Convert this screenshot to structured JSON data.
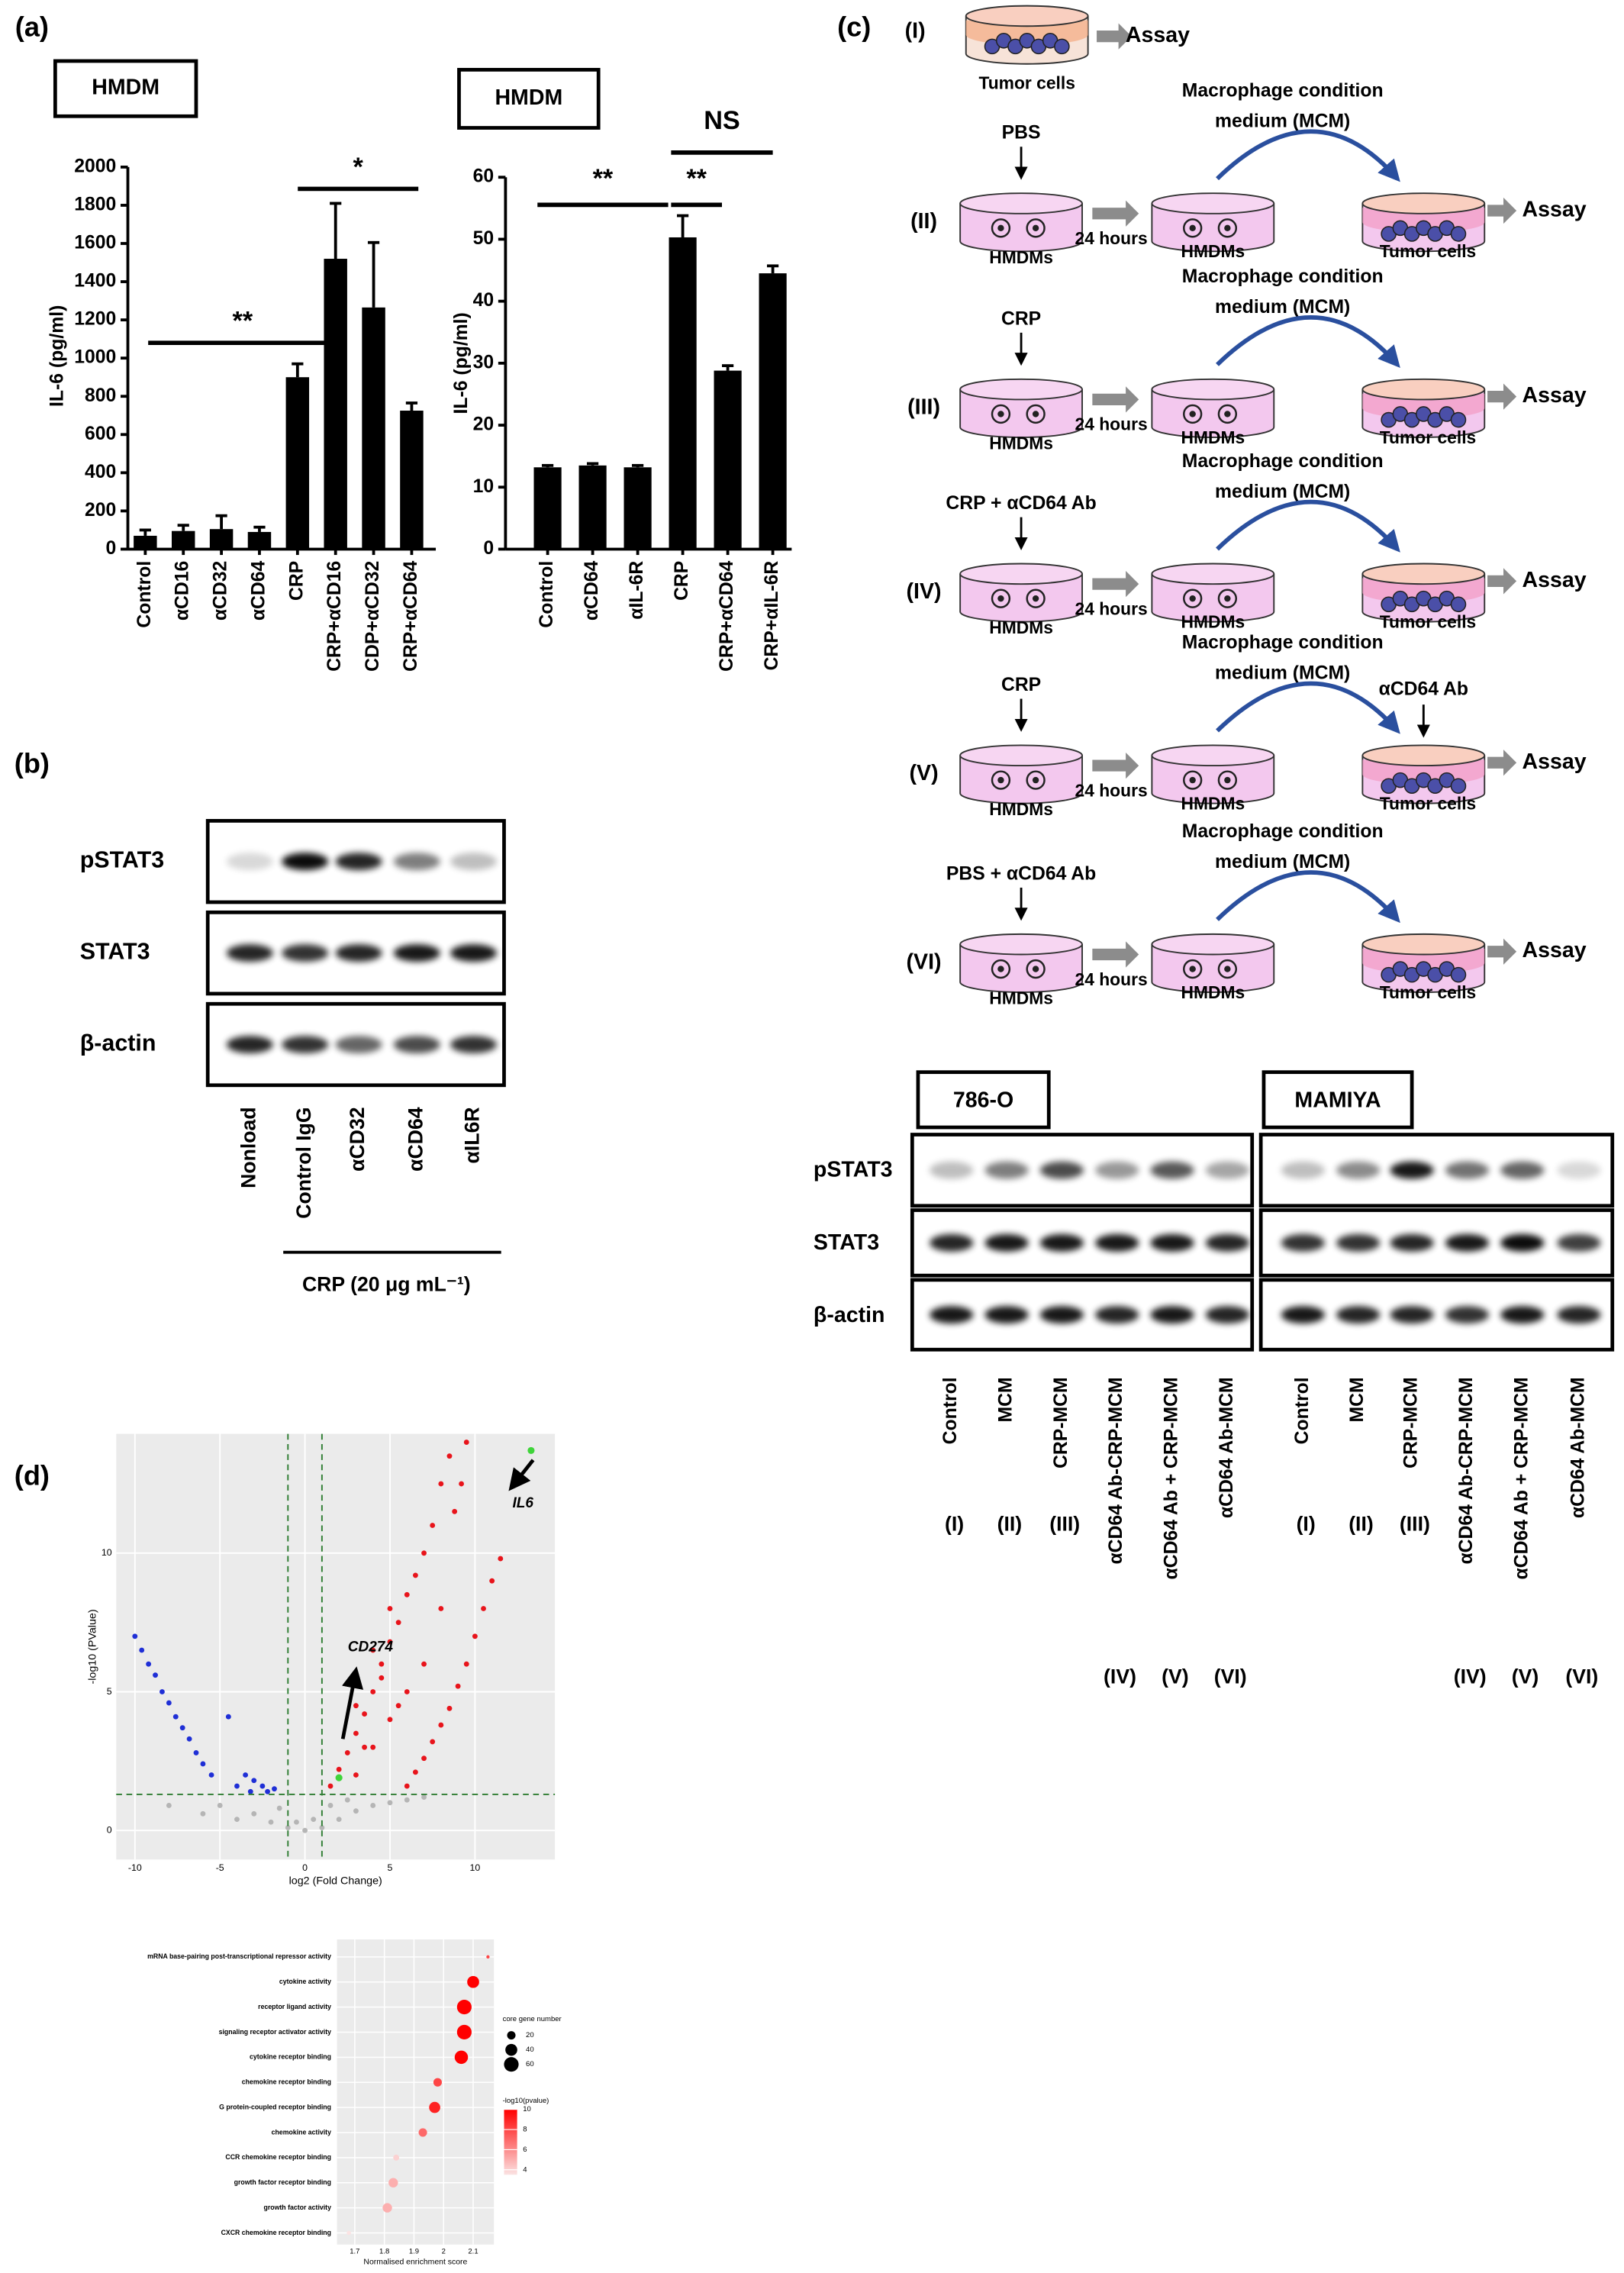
{
  "panel_labels": [
    "(a)",
    "(b)",
    "(c)",
    "(d)"
  ],
  "chart_data": [
    {
      "type": "bar",
      "title": "HMDM",
      "y_label": "IL-6 (pg/ml)",
      "categories": [
        "Control",
        "αCD16",
        "αCD32",
        "αCD64",
        "CRP",
        "CRP+αCD16",
        "CDP+αCD32",
        "CRP+αCD64"
      ],
      "values": [
        70,
        95,
        105,
        90,
        900,
        1520,
        1265,
        725
      ],
      "errors": [
        30,
        30,
        70,
        25,
        70,
        290,
        340,
        40
      ],
      "color": "#000000",
      "ylim": [
        0,
        2000
      ],
      "yticks": [
        0,
        200,
        400,
        600,
        800,
        1000,
        1200,
        1400,
        1600,
        1800,
        2000
      ],
      "annotations": [
        "**",
        "*"
      ]
    },
    {
      "type": "bar",
      "title": "HMDM",
      "y_label": "IL-6 (pg/ml)",
      "categories": [
        "Control",
        "αCD64",
        "αIL-6R",
        "CRP",
        "CRP+αCD64",
        "CRP+αIL-6R"
      ],
      "values": [
        13.2,
        13.5,
        13.2,
        50.3,
        28.8,
        44.5
      ],
      "errors": [
        0.3,
        0.3,
        0.3,
        3.5,
        0.8,
        1.2
      ],
      "color": "#000000",
      "ylim": [
        0,
        60
      ],
      "yticks": [
        0,
        10,
        20,
        30,
        40,
        50,
        60
      ],
      "annotations": [
        "**",
        "**",
        "NS"
      ]
    },
    {
      "type": "scatter",
      "x_label": "log2 (Fold Change)",
      "y_label": "-log10 (PValue)",
      "xlim": [
        -11.1,
        14.7
      ],
      "ylim": [
        -1.05,
        14.3
      ],
      "xticks": [
        -10,
        -5,
        0,
        5,
        10
      ],
      "yticks": [
        0,
        5,
        10
      ],
      "grid": true,
      "x_thresholds": [
        -1,
        1
      ],
      "y_threshold": 1.3,
      "threshold_color": "#2e7d32",
      "annotations": [
        "IL6",
        "CD274"
      ],
      "series": [
        {
          "color": "#b5b5b5",
          "x": [
            -8,
            -6,
            -4,
            -3,
            -2,
            -1,
            0,
            1,
            2,
            3,
            4,
            5,
            6,
            7,
            -5,
            -1.5,
            1.5,
            2.5,
            -0.5,
            0.5
          ],
          "y": [
            0.9,
            0.6,
            0.4,
            0.6,
            0.3,
            0.1,
            0,
            0.1,
            0.4,
            0.7,
            0.9,
            1,
            1.1,
            1.2,
            0.9,
            0.8,
            0.9,
            1.1,
            0.3,
            0.4
          ]
        },
        {
          "color": "#1f2fd6",
          "x": [
            -10,
            -9.6,
            -9.2,
            -8.8,
            -8.4,
            -8,
            -7.6,
            -7.2,
            -6.8,
            -6.4,
            -6,
            -5.5,
            -4.5,
            -3.5,
            -3,
            -2.5,
            -2.2,
            -1.8,
            -4,
            -3.2
          ],
          "y": [
            7,
            6.5,
            6,
            5.6,
            5,
            4.6,
            4.1,
            3.7,
            3.3,
            2.8,
            2.4,
            2,
            4.1,
            2,
            1.8,
            1.6,
            1.4,
            1.5,
            1.6,
            1.4
          ]
        },
        {
          "color": "#e8141b",
          "x": [
            9.5,
            8.5,
            8,
            7.5,
            7,
            6.5,
            6,
            5.5,
            5,
            4.5,
            4,
            3.5,
            3,
            2.5,
            2,
            1.5,
            11.5,
            11,
            10.5,
            10,
            9.5,
            9,
            8.5,
            8,
            7.5,
            7,
            6.5,
            6,
            4,
            3,
            5,
            4.5,
            3.5,
            6,
            5.5,
            7,
            8,
            8.8,
            9.2,
            4,
            3,
            5
          ],
          "y": [
            14,
            13.5,
            12.5,
            11,
            10,
            9.2,
            8.5,
            7.5,
            6.8,
            6,
            5,
            4.2,
            3.5,
            2.8,
            2.2,
            1.6,
            9.8,
            9,
            8,
            7,
            6,
            5.2,
            4.4,
            3.8,
            3.2,
            2.6,
            2.1,
            1.6,
            3,
            2,
            4,
            5.5,
            3,
            5,
            4.5,
            6,
            8,
            11.5,
            12.5,
            6.5,
            4.5,
            8
          ]
        },
        {
          "color": "#3fd43a",
          "x": [
            13.3,
            2
          ],
          "y": [
            13.7,
            1.9
          ]
        }
      ]
    },
    {
      "type": "dot",
      "x_label": "Normalised enrichment score",
      "categories": [
        "mRNA base-pairing post-transcriptional repressor activity",
        "cytokine activity",
        "receptor ligand activity",
        "signaling receptor activator activity",
        "cytokine receptor binding",
        "chemokine receptor binding",
        "G protein-coupled receptor binding",
        "chemokine activity",
        "CCR chemokine receptor binding",
        "growth factor receptor binding",
        "growth factor activity",
        "CXCR chemokine receptor binding"
      ],
      "values": [
        2.15,
        2.1,
        2.07,
        2.07,
        2.06,
        1.98,
        1.97,
        1.93,
        1.84,
        1.83,
        1.81,
        1.68
      ],
      "sizes": [
        3,
        40,
        60,
        60,
        50,
        20,
        35,
        20,
        10,
        25,
        25,
        5
      ],
      "color_values": [
        8,
        10,
        10,
        10,
        10,
        8,
        9,
        7,
        4,
        5,
        5,
        3.5
      ],
      "xlim": [
        1.64,
        2.17
      ],
      "xticks": [
        1.7,
        1.8,
        1.9,
        2.0,
        2.1
      ],
      "size_legend_title": "core gene number",
      "size_ticks": [
        20,
        40,
        60
      ],
      "color_legend_title": "-log10(pvalue)",
      "color_ticks": [
        4,
        6,
        8,
        10
      ],
      "clim": [
        3.5,
        10
      ],
      "color_low": "#fbe3e3",
      "color_high": "#ff0000"
    }
  ],
  "blot_b": {
    "rows": [
      "pSTAT3",
      "STAT3",
      "β-actin"
    ],
    "lanes": [
      "Nonload",
      "Control IgG",
      "αCD32",
      "αCD64",
      "αIL6R"
    ],
    "treatment": "CRP (20 μg mL⁻¹)"
  },
  "diagram": {
    "first": {
      "numeral": "(I)",
      "cells": "Tumor cells",
      "result": "Assay"
    },
    "steps": [
      {
        "numeral": "(II)",
        "treatment": "PBS",
        "cells": "HMDMs",
        "time": "24 hours",
        "medium": [
          "Macrophage condition",
          "medium (MCM)"
        ],
        "conditioned_cells": "HMDMs",
        "target": "Tumor cells",
        "result": "Assay"
      },
      {
        "numeral": "(III)",
        "treatment": "CRP",
        "cells": "HMDMs",
        "time": "24 hours",
        "medium": [
          "Macrophage condition",
          "medium (MCM)"
        ],
        "conditioned_cells": "HMDMs",
        "target": "Tumor cells",
        "result": "Assay"
      },
      {
        "numeral": "(IV)",
        "treatment": "CRP + αCD64 Ab",
        "cells": "HMDMs",
        "time": "24 hours",
        "medium": [
          "Macrophage condition",
          "medium (MCM)"
        ],
        "conditioned_cells": "HMDMs",
        "target": "Tumor cells",
        "result": "Assay"
      },
      {
        "numeral": "(V)",
        "treatment": "CRP",
        "cells": "HMDMs",
        "time": "24 hours",
        "medium": [
          "Macrophage condition",
          "medium (MCM)"
        ],
        "conditioned_cells": "HMDMs",
        "target": "Tumor cells",
        "result": "Assay",
        "added": "αCD64 Ab"
      },
      {
        "numeral": "(VI)",
        "treatment": "PBS + αCD64 Ab",
        "cells": "HMDMs",
        "time": "24 hours",
        "medium": [
          "Macrophage condition",
          "medium (MCM)"
        ],
        "conditioned_cells": "HMDMs",
        "target": "Tumor cells",
        "result": "Assay"
      }
    ]
  },
  "blot_c": {
    "cell_lines": [
      "786-O",
      "MAMIYA"
    ],
    "rows": [
      "pSTAT3",
      "STAT3",
      "β-actin"
    ],
    "lanes": [
      "Control",
      "MCM",
      "CRP-MCM",
      "αCD64 Ab-CRP-MCM",
      "αCD64 Ab + CRP-MCM",
      "αCD64 Ab-MCM"
    ],
    "numerals": [
      "(I)",
      "(II)",
      "(III)",
      "(IV)",
      "(V)",
      "(VI)"
    ]
  }
}
